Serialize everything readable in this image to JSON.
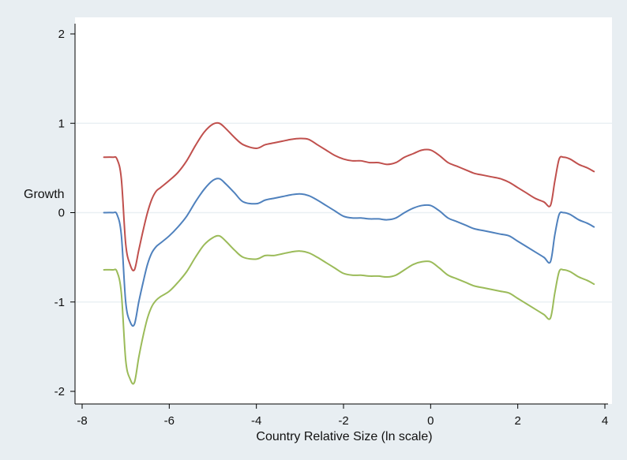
{
  "chart_data": {
    "type": "line",
    "title": "",
    "xlabel": "Country Relative Size (ln scale)",
    "ylabel": "Growth",
    "xlim": [
      -8,
      4
    ],
    "ylim": [
      -2,
      2
    ],
    "xticks": [
      -8,
      -6,
      -4,
      -2,
      0,
      2,
      4
    ],
    "yticks": [
      2,
      1,
      0,
      -1,
      -2
    ],
    "xtick_labels": [
      "-8",
      "-6",
      "-4",
      "-2",
      "0",
      "2",
      "4"
    ],
    "ytick_labels": [
      "2",
      "1",
      "0",
      "-1",
      "-2"
    ],
    "grid": "horizontal",
    "legend": "none",
    "series": [
      {
        "color": "#c0504d",
        "x": [
          -7.5,
          -7.3,
          -7.2,
          -7.1,
          -7.0,
          -6.9,
          -6.8,
          -6.7,
          -6.6,
          -6.5,
          -6.4,
          -6.3,
          -6.2,
          -6.0,
          -5.8,
          -5.6,
          -5.4,
          -5.2,
          -5.0,
          -4.85,
          -4.7,
          -4.5,
          -4.3,
          -4.0,
          -3.8,
          -3.6,
          -3.4,
          -3.2,
          -3.0,
          -2.8,
          -2.6,
          -2.4,
          -2.2,
          -2.0,
          -1.8,
          -1.6,
          -1.4,
          -1.2,
          -1.0,
          -0.8,
          -0.6,
          -0.4,
          -0.2,
          0.0,
          0.2,
          0.4,
          0.6,
          0.8,
          1.0,
          1.2,
          1.4,
          1.6,
          1.8,
          2.0,
          2.2,
          2.4,
          2.6,
          2.75,
          2.85,
          2.95,
          3.05,
          3.2,
          3.4,
          3.6,
          3.75
        ],
        "y": [
          0.62,
          0.62,
          0.6,
          0.38,
          -0.35,
          -0.58,
          -0.64,
          -0.42,
          -0.2,
          0.0,
          0.15,
          0.24,
          0.28,
          0.36,
          0.45,
          0.58,
          0.75,
          0.9,
          0.99,
          1.0,
          0.94,
          0.84,
          0.76,
          0.72,
          0.76,
          0.78,
          0.8,
          0.82,
          0.83,
          0.82,
          0.76,
          0.7,
          0.64,
          0.6,
          0.58,
          0.58,
          0.56,
          0.56,
          0.54,
          0.56,
          0.62,
          0.66,
          0.7,
          0.7,
          0.64,
          0.56,
          0.52,
          0.48,
          0.44,
          0.42,
          0.4,
          0.38,
          0.34,
          0.28,
          0.22,
          0.16,
          0.12,
          0.08,
          0.35,
          0.6,
          0.62,
          0.6,
          0.54,
          0.5,
          0.46
        ]
      },
      {
        "color": "#4f81bd",
        "x": [
          -7.5,
          -7.3,
          -7.2,
          -7.1,
          -7.0,
          -6.9,
          -6.8,
          -6.7,
          -6.6,
          -6.5,
          -6.4,
          -6.3,
          -6.2,
          -6.0,
          -5.8,
          -5.6,
          -5.4,
          -5.2,
          -5.0,
          -4.85,
          -4.7,
          -4.5,
          -4.3,
          -4.0,
          -3.8,
          -3.6,
          -3.4,
          -3.2,
          -3.0,
          -2.8,
          -2.6,
          -2.4,
          -2.2,
          -2.0,
          -1.8,
          -1.6,
          -1.4,
          -1.2,
          -1.0,
          -0.8,
          -0.6,
          -0.4,
          -0.2,
          0.0,
          0.2,
          0.4,
          0.6,
          0.8,
          1.0,
          1.2,
          1.4,
          1.6,
          1.8,
          2.0,
          2.2,
          2.4,
          2.6,
          2.75,
          2.85,
          2.95,
          3.05,
          3.2,
          3.4,
          3.6,
          3.75
        ],
        "y": [
          0.0,
          0.0,
          -0.02,
          -0.25,
          -1.0,
          -1.22,
          -1.25,
          -1.0,
          -0.78,
          -0.58,
          -0.45,
          -0.38,
          -0.34,
          -0.26,
          -0.16,
          -0.04,
          0.12,
          0.26,
          0.36,
          0.38,
          0.32,
          0.22,
          0.12,
          0.1,
          0.14,
          0.16,
          0.18,
          0.2,
          0.21,
          0.19,
          0.14,
          0.08,
          0.02,
          -0.04,
          -0.06,
          -0.06,
          -0.07,
          -0.07,
          -0.08,
          -0.06,
          0.0,
          0.05,
          0.08,
          0.08,
          0.02,
          -0.06,
          -0.1,
          -0.14,
          -0.18,
          -0.2,
          -0.22,
          -0.24,
          -0.26,
          -0.32,
          -0.38,
          -0.44,
          -0.5,
          -0.55,
          -0.25,
          -0.02,
          0.0,
          -0.02,
          -0.08,
          -0.12,
          -0.16
        ]
      },
      {
        "color": "#9bbb59",
        "x": [
          -7.5,
          -7.3,
          -7.2,
          -7.1,
          -7.0,
          -6.9,
          -6.8,
          -6.7,
          -6.6,
          -6.5,
          -6.4,
          -6.3,
          -6.2,
          -6.0,
          -5.8,
          -5.6,
          -5.4,
          -5.2,
          -5.0,
          -4.85,
          -4.7,
          -4.5,
          -4.3,
          -4.0,
          -3.8,
          -3.6,
          -3.4,
          -3.2,
          -3.0,
          -2.8,
          -2.6,
          -2.4,
          -2.2,
          -2.0,
          -1.8,
          -1.6,
          -1.4,
          -1.2,
          -1.0,
          -0.8,
          -0.6,
          -0.4,
          -0.2,
          0.0,
          0.2,
          0.4,
          0.6,
          0.8,
          1.0,
          1.2,
          1.4,
          1.6,
          1.8,
          2.0,
          2.2,
          2.4,
          2.6,
          2.75,
          2.85,
          2.95,
          3.05,
          3.2,
          3.4,
          3.6,
          3.75
        ],
        "y": [
          -0.64,
          -0.64,
          -0.66,
          -0.9,
          -1.65,
          -1.86,
          -1.9,
          -1.62,
          -1.38,
          -1.18,
          -1.05,
          -0.98,
          -0.94,
          -0.88,
          -0.78,
          -0.66,
          -0.5,
          -0.36,
          -0.28,
          -0.26,
          -0.32,
          -0.42,
          -0.5,
          -0.52,
          -0.48,
          -0.48,
          -0.46,
          -0.44,
          -0.43,
          -0.45,
          -0.5,
          -0.56,
          -0.62,
          -0.68,
          -0.7,
          -0.7,
          -0.71,
          -0.71,
          -0.72,
          -0.7,
          -0.64,
          -0.58,
          -0.55,
          -0.55,
          -0.62,
          -0.7,
          -0.74,
          -0.78,
          -0.82,
          -0.84,
          -0.86,
          -0.88,
          -0.9,
          -0.96,
          -1.02,
          -1.08,
          -1.14,
          -1.18,
          -0.9,
          -0.66,
          -0.64,
          -0.66,
          -0.72,
          -0.76,
          -0.8
        ]
      }
    ]
  }
}
